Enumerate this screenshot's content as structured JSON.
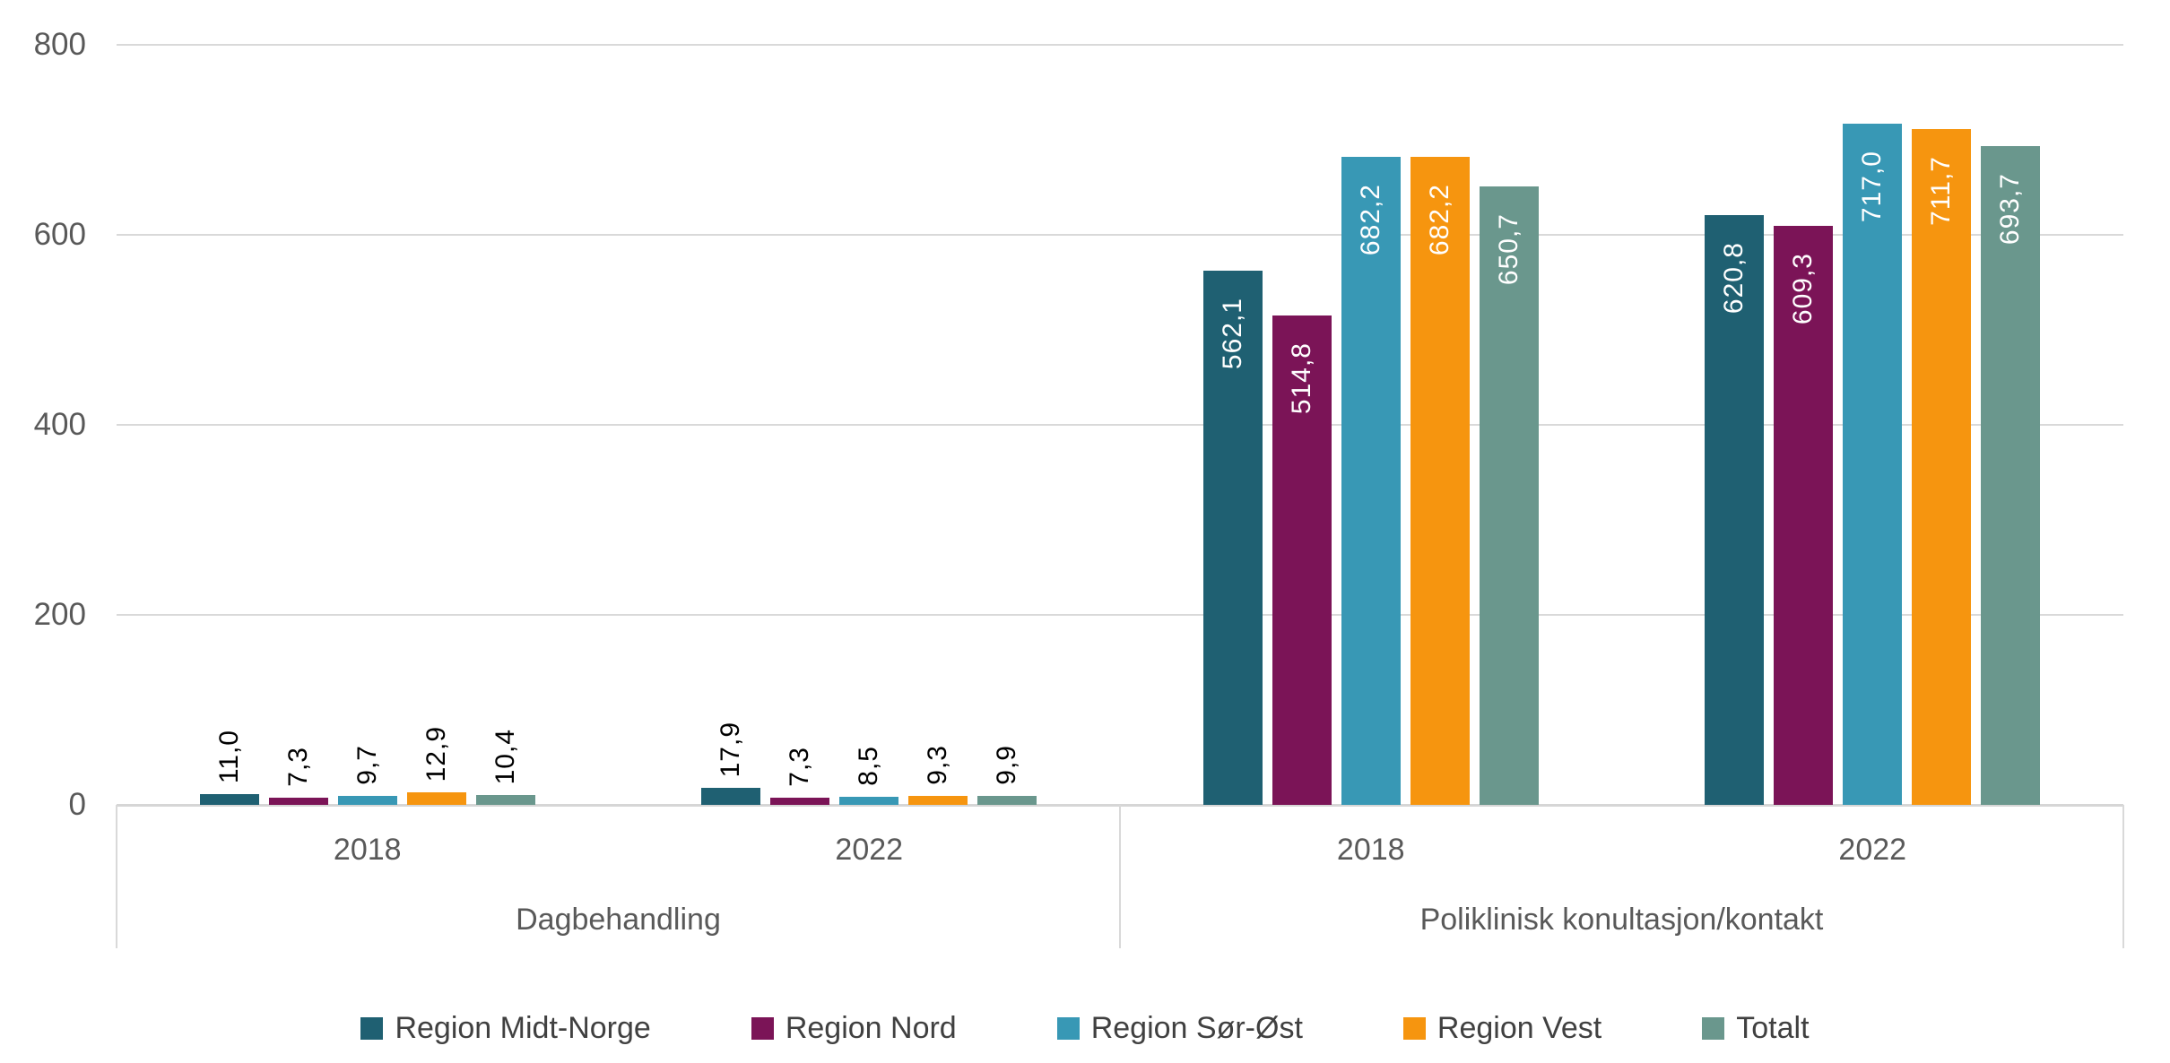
{
  "chart_data": {
    "type": "bar",
    "title": "",
    "grid": true,
    "legend_position": "bottom",
    "y_axis": {
      "min": 0,
      "max": 800,
      "ticks": [
        {
          "value": 0,
          "label": "0"
        },
        {
          "value": 200,
          "label": "200"
        },
        {
          "value": 400,
          "label": "400"
        },
        {
          "value": 600,
          "label": "600"
        },
        {
          "value": 800,
          "label": "800"
        }
      ]
    },
    "series": [
      {
        "name": "Region Midt-Norge",
        "color": "#1F6072"
      },
      {
        "name": "Region Nord",
        "color": "#7B1457"
      },
      {
        "name": "Region Sør-Øst",
        "color": "#3898B5"
      },
      {
        "name": "Region Vest",
        "color": "#F6950F"
      },
      {
        "name": "Totalt",
        "color": "#6A978D"
      }
    ],
    "panels": [
      {
        "label": "Dagbehandling",
        "groups": [
          {
            "label": "2018",
            "values": [
              11.0,
              7.3,
              9.7,
              12.9,
              10.4
            ],
            "value_labels": [
              "11,0",
              "7,3",
              "9,7",
              "12,9",
              "10,4"
            ]
          },
          {
            "label": "2022",
            "values": [
              17.9,
              7.3,
              8.5,
              9.3,
              9.9
            ],
            "value_labels": [
              "17,9",
              "7,3",
              "8,5",
              "9,3",
              "9,9"
            ]
          }
        ]
      },
      {
        "label": "Poliklinisk konultasjon/kontakt",
        "groups": [
          {
            "label": "2018",
            "values": [
              562.1,
              514.8,
              682.2,
              682.2,
              650.7
            ],
            "value_labels": [
              "562,1",
              "514,8",
              "682,2",
              "682,2",
              "650,7"
            ]
          },
          {
            "label": "2022",
            "values": [
              620.8,
              609.3,
              717.0,
              711.7,
              693.7
            ],
            "value_labels": [
              "620,8",
              "609,3",
              "717,0",
              "711,7",
              "693,7"
            ]
          }
        ]
      }
    ]
  }
}
